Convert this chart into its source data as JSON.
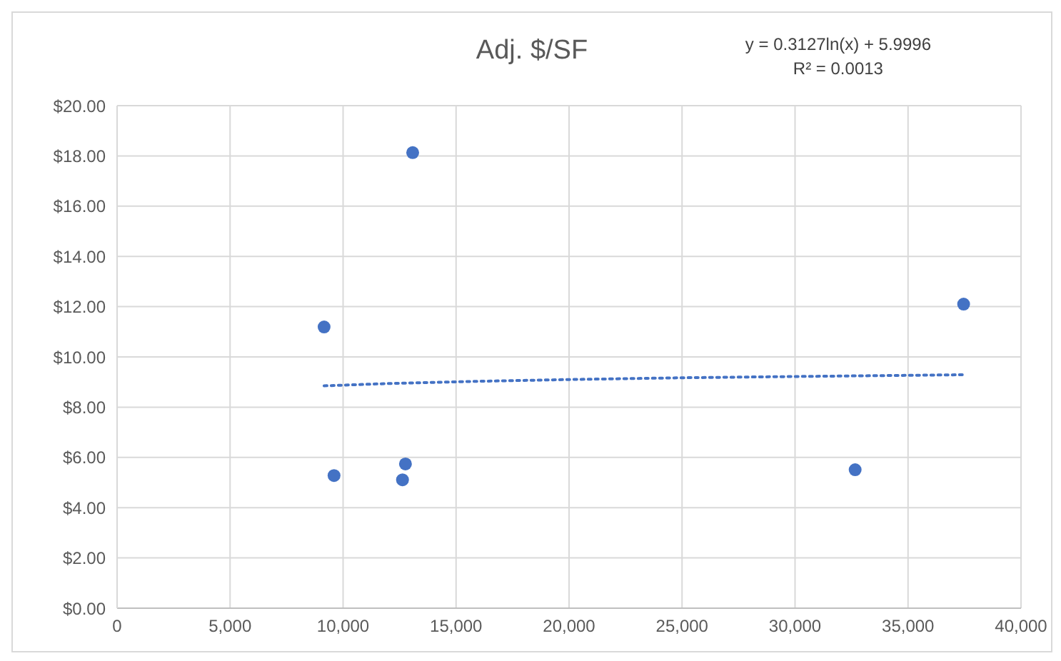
{
  "chart_data": {
    "type": "scatter",
    "title": "Adj. $/SF",
    "annotations": [
      "y = 0.3127ln(x) + 5.9996",
      "R² = 0.0013"
    ],
    "series": [
      {
        "type": "scatter",
        "color": "#4472c4",
        "marker": "circle",
        "x": [
          9160,
          13080,
          9600,
          12760,
          12630,
          32660,
          37460
        ],
        "values": [
          11.19,
          18.13,
          5.28,
          5.74,
          5.11,
          5.51,
          12.1
        ]
      },
      {
        "type": "line",
        "color": "#4472c4",
        "marker": "none",
        "line_style": "dotted",
        "x": [
          9160,
          12000,
          16000,
          20000,
          25000,
          30000,
          37460
        ],
        "values": [
          8.85,
          8.94,
          9.03,
          9.1,
          9.17,
          9.22,
          9.29
        ]
      }
    ],
    "xlim": [
      0,
      40000
    ],
    "xticks": [
      0,
      {
        "value": 5000,
        "label": "5,000"
      },
      {
        "value": 10000,
        "label": "10,000"
      },
      {
        "value": 15000,
        "label": "15,000"
      },
      {
        "value": 20000,
        "label": "20,000"
      },
      {
        "value": 25000,
        "label": "25,000"
      },
      {
        "value": 30000,
        "label": "30,000"
      },
      {
        "value": 35000,
        "label": "35,000"
      },
      {
        "value": 40000,
        "label": "40,000"
      }
    ],
    "ylim": [
      0,
      20
    ],
    "yticks": [
      {
        "value": 0,
        "label": "$0.00"
      },
      {
        "value": 2,
        "label": "$2.00"
      },
      {
        "value": 4,
        "label": "$4.00"
      },
      {
        "value": 6,
        "label": "$6.00"
      },
      {
        "value": 8,
        "label": "$8.00"
      },
      {
        "value": 10,
        "label": "$10.00"
      },
      {
        "value": 12,
        "label": "$12.00"
      },
      {
        "value": 14,
        "label": "$14.00"
      },
      {
        "value": 16,
        "label": "$16.00"
      },
      {
        "value": 18,
        "label": "$18.00"
      },
      {
        "value": 20,
        "label": "$20.00"
      }
    ],
    "grid": true,
    "legend": false
  }
}
